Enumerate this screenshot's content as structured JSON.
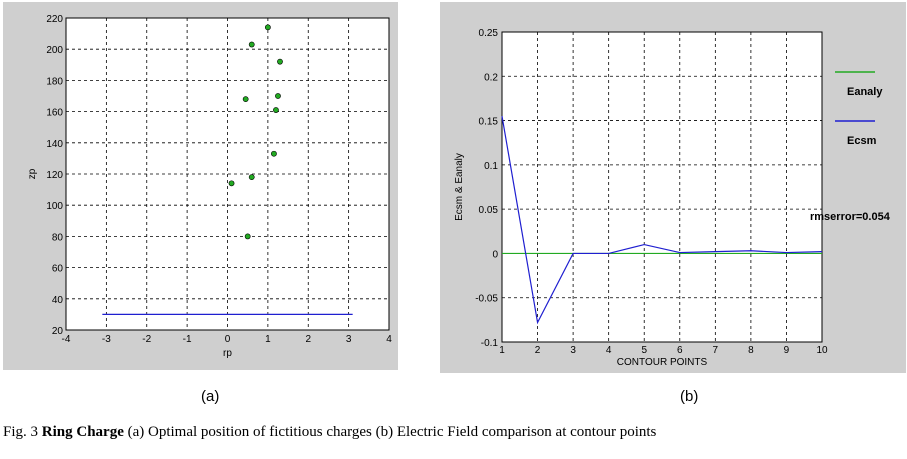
{
  "chart_data": [
    {
      "type": "scatter",
      "panel": "(a)",
      "xlabel": "rp",
      "ylabel": "zp",
      "xlim": [
        -4,
        4
      ],
      "ylim": [
        20,
        220
      ],
      "xticks": [
        -4,
        -3,
        -2,
        -1,
        0,
        1,
        2,
        3,
        4
      ],
      "yticks": [
        20,
        40,
        60,
        80,
        100,
        120,
        140,
        160,
        180,
        200,
        220
      ],
      "grid": true,
      "points": [
        {
          "x": 1.0,
          "y": 214
        },
        {
          "x": 0.6,
          "y": 203
        },
        {
          "x": 1.3,
          "y": 192
        },
        {
          "x": 1.25,
          "y": 170
        },
        {
          "x": 0.45,
          "y": 168
        },
        {
          "x": 1.2,
          "y": 161
        },
        {
          "x": 1.15,
          "y": 133
        },
        {
          "x": 0.6,
          "y": 118
        },
        {
          "x": 0.1,
          "y": 114
        },
        {
          "x": 0.5,
          "y": 80
        }
      ],
      "line": {
        "x": [
          -3.1,
          3.1
        ],
        "y": [
          30,
          30
        ]
      },
      "colors": {
        "points": "#22aa22",
        "line": "#1f1fd0"
      }
    },
    {
      "type": "line",
      "panel": "(b)",
      "xlabel": "CONTOUR POINTS",
      "ylabel": "Ecsm & Eanaly",
      "xlim": [
        1,
        10
      ],
      "ylim": [
        -0.1,
        0.25
      ],
      "xticks": [
        1,
        2,
        3,
        4,
        5,
        6,
        7,
        8,
        9,
        10
      ],
      "yticks": [
        -0.1,
        -0.05,
        0,
        0.05,
        0.1,
        0.15,
        0.2,
        0.25
      ],
      "ytick_labels": [
        "-0.1",
        "-0.05",
        "0",
        "0.05",
        "0.1",
        "0.15",
        "0.2",
        "0.25"
      ],
      "grid": true,
      "x": [
        1,
        2,
        3,
        4,
        5,
        6,
        7,
        8,
        9,
        10
      ],
      "series": [
        {
          "name": "Eanaly",
          "color": "#22aa22",
          "values": [
            0,
            0,
            0,
            0,
            0,
            0,
            0,
            0,
            0,
            0
          ]
        },
        {
          "name": "Ecsm",
          "color": "#1f1fd0",
          "values": [
            0.155,
            -0.078,
            0,
            0,
            0.01,
            0.001,
            0.002,
            0.003,
            0.001,
            0.002
          ]
        }
      ],
      "legend": "right",
      "annotation": "rmserror=0.054"
    }
  ],
  "labels": {
    "sub_a": "(a)",
    "sub_b": "(b)"
  },
  "caption": {
    "prefix": "Fig. 3 ",
    "bold": "Ring Charge",
    "rest": " (a) Optimal position of fictitious charges (b) Electric  Field comparison at contour points"
  }
}
